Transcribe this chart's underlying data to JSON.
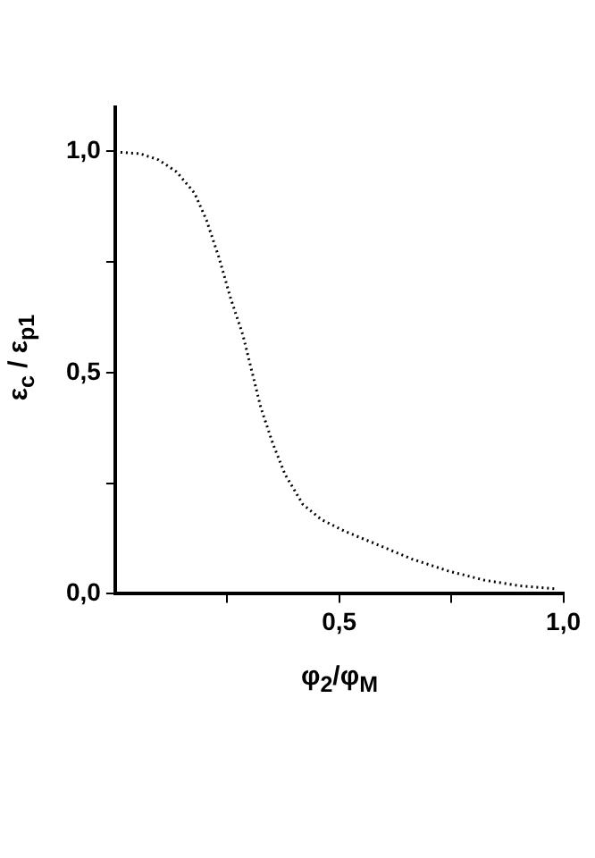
{
  "chart_data": {
    "type": "line",
    "xlabel": "φ$_{2}$/φ$_{M}$",
    "ylabel": "ε$_{c}$ / ε$_{p1}$",
    "x": [
      0,
      0.056,
      0.097,
      0.137,
      0.177,
      0.204,
      0.231,
      0.258,
      0.285,
      0.305,
      0.325,
      0.352,
      0.379,
      0.419,
      0.46,
      0.513,
      0.581,
      0.661,
      0.742,
      0.823,
      0.903,
      0.984
    ],
    "series": [
      {
        "color": "#000000",
        "values": [
          0.999,
          0.995,
          0.981,
          0.954,
          0.906,
          0.844,
          0.762,
          0.667,
          0.585,
          0.503,
          0.421,
          0.339,
          0.27,
          0.202,
          0.168,
          0.141,
          0.113,
          0.079,
          0.052,
          0.031,
          0.018,
          0.011
        ]
      }
    ],
    "xlim": [
      0,
      1
    ],
    "ylim": [
      0,
      1.1
    ],
    "xticks": [
      {
        "value": 0.25,
        "label": null
      },
      {
        "value": 0.5,
        "label": "0,5"
      },
      {
        "value": 0.75,
        "label": null
      },
      {
        "value": 1,
        "label": "1,0"
      }
    ],
    "yticks": [
      {
        "value": 0,
        "label": "0,0"
      },
      {
        "value": 0.25,
        "label": null
      },
      {
        "value": 0.5,
        "label": "0,5"
      },
      {
        "value": 0.75,
        "label": null
      },
      {
        "value": 1,
        "label": "1,0"
      }
    ],
    "grid": false,
    "legend": false,
    "line_style": "dotted"
  }
}
